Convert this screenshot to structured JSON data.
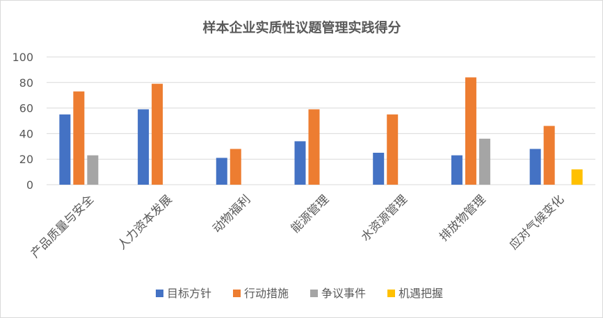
{
  "chart_data": {
    "type": "bar",
    "title": "样本企业实质性议题管理实践得分",
    "xlabel": "",
    "ylabel": "",
    "categories": [
      "产品质量与安全",
      "人力资本发展",
      "动物福利",
      "能源管理",
      "水资源管理",
      "排放物管理",
      "应对气候变化"
    ],
    "series": [
      {
        "name": "目标方针",
        "color": "#4472C4",
        "values": [
          55,
          59,
          21,
          34,
          25,
          23,
          28
        ]
      },
      {
        "name": "行动措施",
        "color": "#ED7D31",
        "values": [
          73,
          79,
          28,
          59,
          55,
          84,
          46
        ]
      },
      {
        "name": "争议事件",
        "color": "#A5A5A5",
        "values": [
          23,
          null,
          null,
          null,
          null,
          36,
          null
        ]
      },
      {
        "name": "机遇把握",
        "color": "#FFC000",
        "values": [
          null,
          null,
          null,
          null,
          null,
          null,
          12
        ]
      }
    ],
    "ylim": [
      0,
      100
    ],
    "yticks": [
      0,
      20,
      40,
      60,
      80,
      100
    ],
    "grid": true,
    "legend_position": "bottom"
  }
}
